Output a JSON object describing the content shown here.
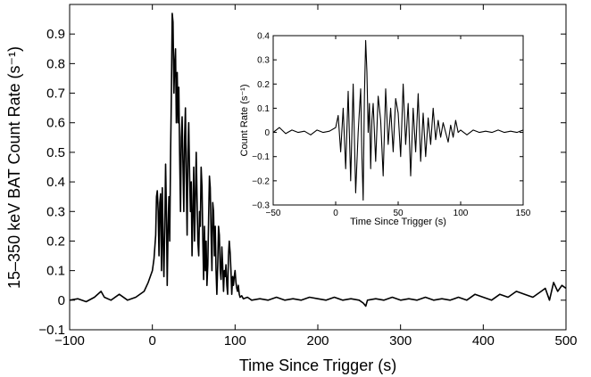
{
  "chart_data": [
    {
      "id": "main",
      "type": "line",
      "title": "",
      "xlabel": "Time Since Trigger (s)",
      "ylabel": "15–350 keV BAT Count Rate (s⁻¹)",
      "xlim": [
        -100,
        500
      ],
      "ylim": [
        -0.1,
        1.0
      ],
      "xticks": [
        -100,
        0,
        100,
        200,
        300,
        400,
        500
      ],
      "xtick_labels": [
        "−100",
        "0",
        "100",
        "200",
        "300",
        "400",
        "500"
      ],
      "yticks": [
        -0.1,
        0,
        0.1,
        0.2,
        0.3,
        0.4,
        0.5,
        0.6,
        0.7,
        0.8,
        0.9
      ],
      "ytick_labels": [
        "−0.1",
        "0",
        "0.1",
        "0.2",
        "0.3",
        "0.4",
        "0.5",
        "0.6",
        "0.7",
        "0.8",
        "0.9"
      ],
      "grid": false,
      "series": [
        {
          "x": [
            -100,
            -90,
            -80,
            -70,
            -62,
            -58,
            -50,
            -40,
            -30,
            -20,
            -10,
            -5,
            0,
            2,
            4,
            5,
            6,
            7,
            8,
            9,
            10,
            11,
            12,
            13,
            14,
            15,
            16,
            17,
            18,
            19,
            20,
            21,
            22,
            23,
            24,
            25,
            26,
            27,
            28,
            29,
            30,
            31,
            32,
            33,
            34,
            35,
            36,
            37,
            38,
            39,
            40,
            41,
            42,
            43,
            44,
            45,
            46,
            47,
            48,
            49,
            50,
            51,
            52,
            53,
            54,
            55,
            56,
            57,
            58,
            59,
            60,
            61,
            62,
            63,
            64,
            65,
            66,
            67,
            68,
            69,
            70,
            71,
            72,
            73,
            74,
            75,
            76,
            77,
            78,
            79,
            80,
            81,
            82,
            83,
            84,
            85,
            86,
            87,
            88,
            89,
            90,
            91,
            92,
            93,
            94,
            95,
            96,
            97,
            98,
            99,
            100,
            101,
            102,
            103,
            104,
            105,
            106,
            108,
            110,
            115,
            120,
            130,
            140,
            150,
            160,
            170,
            180,
            190,
            200,
            210,
            220,
            230,
            240,
            250,
            255,
            258,
            260,
            270,
            280,
            290,
            300,
            310,
            320,
            330,
            340,
            350,
            360,
            370,
            380,
            390,
            400,
            410,
            420,
            430,
            440,
            450,
            460,
            470,
            475,
            480,
            485,
            490,
            495,
            500
          ],
          "y": [
            0.0,
            0.005,
            -0.005,
            0.01,
            0.03,
            0.01,
            0.0,
            0.02,
            0.0,
            0.01,
            0.03,
            0.06,
            0.1,
            0.14,
            0.22,
            0.35,
            0.37,
            0.3,
            0.15,
            0.33,
            0.36,
            0.1,
            0.38,
            0.2,
            0.08,
            0.25,
            0.46,
            0.3,
            0.05,
            0.25,
            0.35,
            0.2,
            0.5,
            0.7,
            0.97,
            0.94,
            0.7,
            0.8,
            0.85,
            0.6,
            0.77,
            0.6,
            0.72,
            0.5,
            0.3,
            0.55,
            0.62,
            0.45,
            0.3,
            0.55,
            0.65,
            0.4,
            0.22,
            0.5,
            0.6,
            0.42,
            0.3,
            0.4,
            0.15,
            0.3,
            0.45,
            0.2,
            0.35,
            0.5,
            0.35,
            0.2,
            0.15,
            0.3,
            0.25,
            0.45,
            0.38,
            0.2,
            0.07,
            0.25,
            0.1,
            0.2,
            0.05,
            0.12,
            0.28,
            0.42,
            0.38,
            0.22,
            0.1,
            0.33,
            0.3,
            0.15,
            0.25,
            0.1,
            0.02,
            0.12,
            0.25,
            0.22,
            0.1,
            0.07,
            0.18,
            0.12,
            0.03,
            0.1,
            0.08,
            0.12,
            0.05,
            0.02,
            0.15,
            0.2,
            0.16,
            0.1,
            0.02,
            0.08,
            0.05,
            0.08,
            0.1,
            0.06,
            0.04,
            0.03,
            0.05,
            0.02,
            0.01,
            0.015,
            0.005,
            0.01,
            0.0,
            0.005,
            0.0,
            0.01,
            0.0,
            0.005,
            0.0,
            0.01,
            0.005,
            0.0,
            0.01,
            0.0,
            0.005,
            0.0,
            -0.01,
            -0.02,
            0.0,
            0.005,
            0.0,
            0.01,
            0.0,
            0.005,
            0.0,
            0.01,
            0.0,
            0.005,
            0.0,
            0.01,
            0.0,
            0.02,
            0.01,
            0.0,
            0.02,
            0.01,
            0.03,
            0.02,
            0.01,
            0.03,
            0.04,
            0.0,
            0.06,
            0.03,
            0.05,
            0.04
          ]
        }
      ]
    },
    {
      "id": "inset",
      "type": "line",
      "title": "",
      "xlabel": "Time Since Trigger (s)",
      "ylabel": "Count Rate (s⁻¹)",
      "xlim": [
        -50,
        150
      ],
      "ylim": [
        -0.3,
        0.4
      ],
      "xticks": [
        -50,
        0,
        50,
        100,
        150
      ],
      "xtick_labels": [
        "−50",
        "0",
        "50",
        "100",
        "150"
      ],
      "yticks": [
        -0.3,
        -0.2,
        -0.1,
        0,
        0.1,
        0.2,
        0.3,
        0.4
      ],
      "ytick_labels": [
        "−0.3",
        "−0.2",
        "−0.1",
        "0",
        "0.1",
        "0.2",
        "0.3",
        "0.4"
      ],
      "grid": false,
      "series": [
        {
          "x": [
            -50,
            -45,
            -40,
            -35,
            -30,
            -25,
            -20,
            -15,
            -10,
            -5,
            0,
            2,
            4,
            6,
            8,
            10,
            12,
            14,
            16,
            18,
            20,
            21,
            22,
            23,
            24,
            25,
            26,
            27,
            28,
            29,
            30,
            32,
            34,
            36,
            38,
            40,
            42,
            44,
            46,
            48,
            50,
            52,
            54,
            56,
            58,
            60,
            62,
            64,
            66,
            68,
            70,
            72,
            74,
            76,
            78,
            80,
            82,
            84,
            86,
            88,
            90,
            92,
            94,
            96,
            98,
            100,
            105,
            110,
            115,
            120,
            125,
            130,
            135,
            140,
            145,
            150
          ],
          "y": [
            0.0,
            0.02,
            -0.005,
            0.01,
            0.0,
            0.005,
            -0.01,
            0.01,
            0.0,
            0.005,
            0.02,
            0.07,
            -0.08,
            0.1,
            -0.15,
            0.17,
            -0.2,
            0.2,
            -0.25,
            0.0,
            0.18,
            -0.1,
            -0.28,
            0.15,
            0.38,
            0.25,
            0.0,
            0.12,
            -0.15,
            0.05,
            0.12,
            -0.12,
            0.15,
            0.05,
            -0.18,
            0.18,
            -0.05,
            0.1,
            -0.08,
            0.14,
            0.08,
            -0.1,
            0.2,
            -0.05,
            0.12,
            -0.18,
            0.1,
            -0.08,
            0.16,
            -0.12,
            0.08,
            -0.1,
            0.06,
            -0.05,
            0.1,
            -0.03,
            0.05,
            -0.02,
            0.04,
            0.0,
            -0.04,
            0.03,
            -0.02,
            0.05,
            0.0,
            0.01,
            -0.01,
            0.01,
            0.0,
            0.005,
            0.0,
            0.01,
            0.0,
            0.005,
            0.0,
            0.01
          ]
        }
      ]
    }
  ]
}
